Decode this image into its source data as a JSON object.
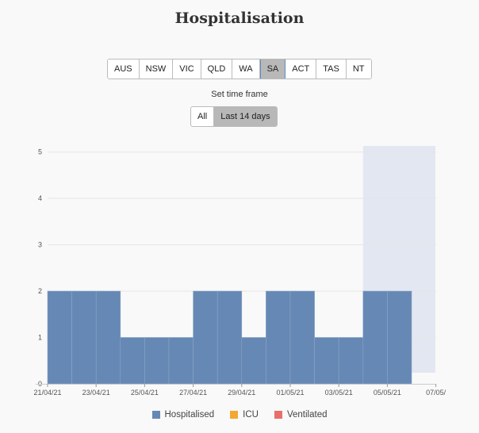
{
  "title": "Hospitalisation",
  "states": [
    {
      "label": "AUS",
      "active": false
    },
    {
      "label": "NSW",
      "active": false
    },
    {
      "label": "VIC",
      "active": false
    },
    {
      "label": "QLD",
      "active": false
    },
    {
      "label": "WA",
      "active": false
    },
    {
      "label": "SA",
      "active": true
    },
    {
      "label": "ACT",
      "active": false
    },
    {
      "label": "TAS",
      "active": false
    },
    {
      "label": "NT",
      "active": false
    }
  ],
  "timeframe": {
    "label": "Set time frame",
    "options": [
      {
        "label": "All",
        "active": false
      },
      {
        "label": "Last 14 days",
        "active": true
      }
    ]
  },
  "colors": {
    "hospitalised": "#6688b4",
    "icu": "#f2a931",
    "ventilated": "#e8706a",
    "shaded_region": "#e3e7f1"
  },
  "chart_data": {
    "type": "bar",
    "categories": [
      "21/04/21",
      "22/04/21",
      "23/04/21",
      "24/04/21",
      "25/04/21",
      "26/04/21",
      "27/04/21",
      "28/04/21",
      "29/04/21",
      "30/04/21",
      "01/05/21",
      "02/05/21",
      "03/05/21",
      "04/05/21",
      "05/05/21",
      "06/05/21"
    ],
    "series": [
      {
        "name": "Hospitalised",
        "values": [
          2,
          2,
          2,
          1,
          1,
          1,
          2,
          2,
          1,
          2,
          2,
          1,
          1,
          2,
          2,
          0
        ]
      },
      {
        "name": "ICU",
        "values": [
          0,
          0,
          0,
          0,
          0,
          0,
          0,
          0,
          0,
          0,
          0,
          0,
          0,
          0,
          0,
          0
        ]
      },
      {
        "name": "Ventilated",
        "values": [
          0,
          0,
          0,
          0,
          0,
          0,
          0,
          0,
          0,
          0,
          0,
          0,
          0,
          0,
          0,
          0
        ]
      }
    ],
    "xticks": [
      "21/04/21",
      "23/04/21",
      "25/04/21",
      "27/04/21",
      "29/04/21",
      "01/05/21",
      "03/05/21",
      "05/05/21",
      "07/05/"
    ],
    "yticks": [
      0,
      1,
      2,
      3,
      4,
      5
    ],
    "ylim": [
      0,
      5.2
    ],
    "shaded_from": "04/05/21",
    "grid": true,
    "legend_position": "bottom"
  }
}
